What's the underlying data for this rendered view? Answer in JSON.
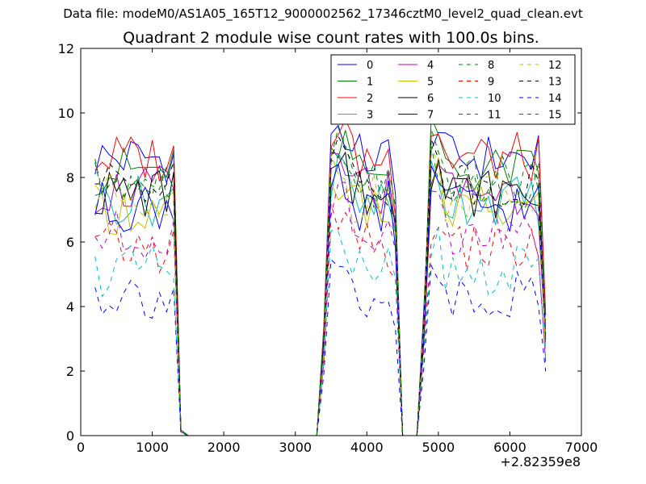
{
  "figure": {
    "suptitle": "Data file: modeM0/AS1A05_165T12_9000002562_17346cztM0_level2_quad_clean.evt"
  },
  "chart_data": {
    "type": "line",
    "title": "Quadrant 2 module wise count rates with 100.0s bins.",
    "xlabel": "",
    "ylabel": "",
    "x_offset_label": "+2.82359e8",
    "xlim": [
      0,
      7000
    ],
    "ylim": [
      0,
      12
    ],
    "xticks": [
      0,
      1000,
      2000,
      3000,
      4000,
      5000,
      6000,
      7000
    ],
    "yticks": [
      0,
      2,
      4,
      6,
      8,
      10,
      12
    ],
    "legend_position": "top-right",
    "legend_columns": 4,
    "x": [
      200,
      300,
      400,
      500,
      600,
      700,
      800,
      900,
      1000,
      1100,
      1200,
      1300,
      1400,
      1500,
      1600,
      1700,
      1800,
      1900,
      2000,
      2100,
      2200,
      2300,
      2400,
      2500,
      2600,
      2700,
      2800,
      2900,
      3000,
      3100,
      3200,
      3300,
      3400,
      3500,
      3600,
      3700,
      3800,
      3900,
      4000,
      4100,
      4200,
      4300,
      4400,
      4500,
      4600,
      4700,
      4800,
      4900,
      5000,
      5100,
      5200,
      5300,
      5400,
      5500,
      5600,
      5700,
      5800,
      5900,
      6000,
      6100,
      6200,
      6300,
      6400,
      6500
    ],
    "active_segments": [
      {
        "start": 200,
        "end": 1300,
        "rise_end": 1300
      },
      {
        "start": 3500,
        "end": 4300,
        "rise_start": 3300
      },
      {
        "start": 4900,
        "end": 6400,
        "rise_start": 4700
      }
    ],
    "series": [
      {
        "name": "0",
        "color": "#0000ff",
        "style": "solid",
        "level": 8.6
      },
      {
        "name": "1",
        "color": "#008000",
        "style": "solid",
        "level": 8.2
      },
      {
        "name": "2",
        "color": "#ff0000",
        "style": "solid",
        "level": 8.6
      },
      {
        "name": "3",
        "color": "#00bfbf",
        "style": "solid",
        "level": 7.3
      },
      {
        "name": "4",
        "color": "#bf00bf",
        "style": "solid",
        "level": 7.6
      },
      {
        "name": "5",
        "color": "#bfbf00",
        "style": "solid",
        "level": 7.0
      },
      {
        "name": "6",
        "color": "#000000",
        "style": "solid",
        "level": 7.5
      },
      {
        "name": "7",
        "color": "#0000ff",
        "style": "solid",
        "level": 7.1
      },
      {
        "name": "8",
        "color": "#008000",
        "style": "dashed",
        "level": 7.9
      },
      {
        "name": "9",
        "color": "#ff0000",
        "style": "dashed",
        "level": 5.8
      },
      {
        "name": "10",
        "color": "#00bfbf",
        "style": "dashed",
        "level": 5.1
      },
      {
        "name": "11",
        "color": "#bf00bf",
        "style": "dashed",
        "level": 6.2
      },
      {
        "name": "12",
        "color": "#bfbf00",
        "style": "dashed",
        "level": 7.4
      },
      {
        "name": "13",
        "color": "#000000",
        "style": "dashed",
        "level": 7.8
      },
      {
        "name": "14",
        "color": "#0000ff",
        "style": "dashed",
        "level": 4.4
      },
      {
        "name": "15",
        "color": "#008000",
        "style": "dashed",
        "level": 7.7
      }
    ]
  }
}
